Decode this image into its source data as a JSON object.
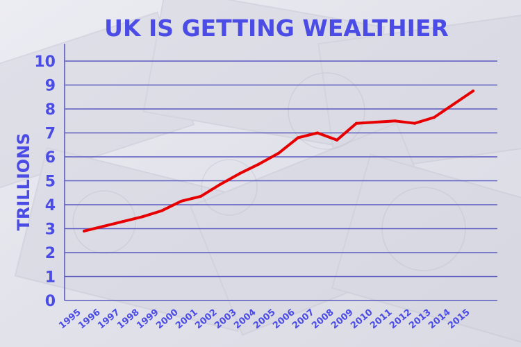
{
  "chart_data": {
    "type": "line",
    "title": "UK IS GETTING WEALTHIER",
    "xlabel": "",
    "ylabel": "TRILLIONS",
    "ylim": [
      0,
      10
    ],
    "yticks": [
      "0",
      "1",
      "2",
      "3",
      "4",
      "5",
      "6",
      "7",
      "8",
      "9",
      "10"
    ],
    "grid": true,
    "categories": [
      "1995",
      "1996",
      "1997",
      "1998",
      "1999",
      "2000",
      "2001",
      "2002",
      "2003",
      "2004",
      "2005",
      "2006",
      "2007",
      "2008",
      "2009",
      "2010",
      "2011",
      "2012",
      "2013",
      "2014",
      "2015"
    ],
    "series": [
      {
        "values": [
          2.9,
          3.1,
          3.3,
          3.5,
          3.75,
          4.15,
          4.35,
          4.85,
          5.3,
          5.7,
          6.15,
          6.8,
          7.0,
          6.7,
          7.4,
          7.45,
          7.5,
          7.4,
          7.65,
          8.2,
          8.75
        ]
      }
    ],
    "colors": {
      "line": "#e60000",
      "text": "#4b4be6",
      "grid": "#5a5ac0"
    }
  }
}
